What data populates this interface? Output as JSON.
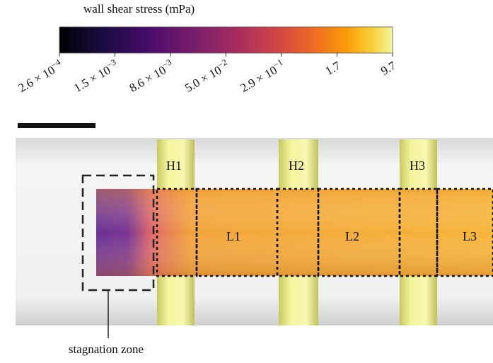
{
  "colorbar": {
    "title": "wall shear stress (mPa)",
    "ticks": [
      {
        "base": "2.6 × 10",
        "exp": "−4"
      },
      {
        "base": "1.5 × 10",
        "exp": "−3"
      },
      {
        "base": "8.6 × 10",
        "exp": "−3"
      },
      {
        "base": "5.0 × 10",
        "exp": "−2"
      },
      {
        "base": "2.9 × 10",
        "exp": "−1"
      },
      {
        "base": "1.7"
      },
      {
        "base": "9.7"
      }
    ]
  },
  "regions": {
    "H1": "H1",
    "H2": "H2",
    "H3": "H3",
    "L1": "L1",
    "L2": "L2",
    "L3": "L3"
  },
  "annotation": "stagnation zone"
}
